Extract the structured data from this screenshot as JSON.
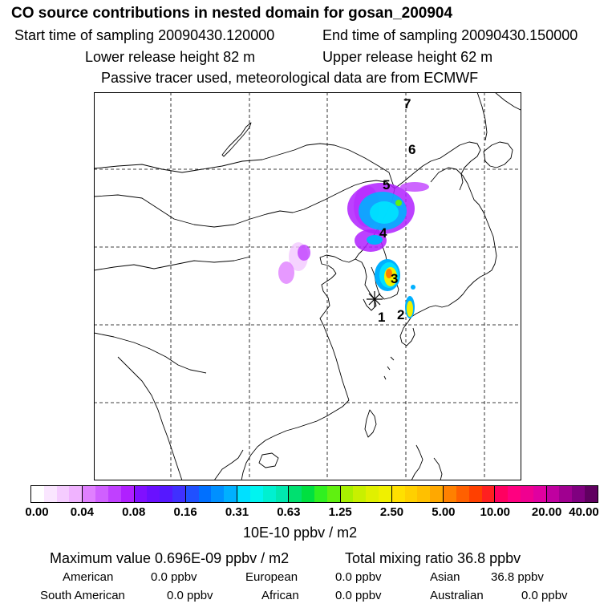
{
  "header": {
    "title": "CO  source contributions in nested domain for gosan_200904",
    "start_time": "Start time of sampling 20090430.120000",
    "end_time": "End time of sampling 20090430.150000",
    "lower_height": "Lower release height   82 m",
    "upper_height": "Upper release height   62 m",
    "tracer_note": "Passive tracer used, meteorological data are from ECMWF"
  },
  "map": {
    "gridlines": "dashed",
    "receptor_marker": "asterisk",
    "trajectory_labels": [
      "1",
      "2",
      "3",
      "4",
      "5",
      "6",
      "7"
    ]
  },
  "colorbar": {
    "tick_labels": [
      "0.00",
      "0.04",
      "0.08",
      "0.16",
      "0.31",
      "0.63",
      "1.25",
      "2.50",
      "5.00",
      "10.00",
      "20.00",
      "40.00"
    ],
    "segment_colors": [
      [
        "#ffffff",
        "#fae6ff",
        "#f5ccff",
        "#f0b3ff"
      ],
      [
        "#e080ff",
        "#d060ff",
        "#c040ff",
        "#b020ff"
      ],
      [
        "#8010ff",
        "#6a10ff",
        "#5518ff",
        "#4030ff"
      ],
      [
        "#2050ff",
        "#0070ff",
        "#0090ff",
        "#00b0ff"
      ],
      [
        "#00e0ff",
        "#00f4f0",
        "#00f0d0",
        "#00e8b0"
      ],
      [
        "#00e070",
        "#00e040",
        "#30f020",
        "#60f010"
      ],
      [
        "#a8f000",
        "#c8f000",
        "#e0f000",
        "#f0f000"
      ],
      [
        "#ffe000",
        "#ffd000",
        "#ffc000",
        "#ffa800"
      ],
      [
        "#ff8000",
        "#ff6000",
        "#ff4000",
        "#ff2020"
      ],
      [
        "#ff0060",
        "#ff0080",
        "#f00090",
        "#e000a0"
      ],
      [
        "#c000a0",
        "#a00090",
        "#800080",
        "#600060"
      ]
    ],
    "units": "10E-10 ppbv / m2"
  },
  "stats": {
    "max_value": "Maximum value  0.696E-09 ppbv / m2",
    "total_mixing": "Total mixing ratio       36.8 ppbv",
    "american_label": "American",
    "american_value": "0.0 ppbv",
    "european_label": "European",
    "european_value": "0.0 ppbv",
    "asian_label": "Asian",
    "asian_value": "36.8 ppbv",
    "south_american_label": "South American",
    "south_american_value": "0.0 ppbv",
    "african_label": "African",
    "african_value": "0.0 ppbv",
    "australian_label": "Australian",
    "australian_value": "0.0 ppbv"
  }
}
